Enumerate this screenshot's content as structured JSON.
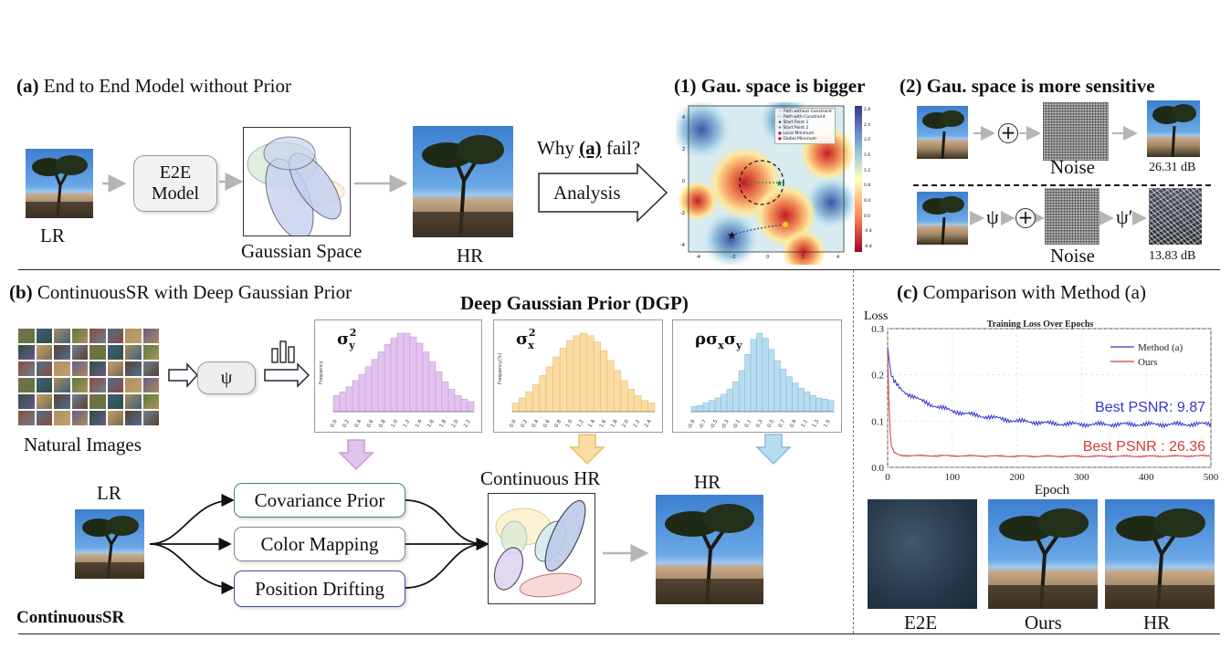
{
  "section_a": {
    "prefix": "(a)",
    "title": "End to End Model without Prior",
    "lr_label": "LR",
    "model_label_1": "E2E",
    "model_label_2": "Model",
    "gauss_label": "Gaussian Space",
    "hr_label": "HR",
    "why_prefix": "Why ",
    "why_mid": "(a)",
    "why_suffix": " fail?",
    "analysis_label": "Analysis"
  },
  "panel_1": {
    "title": "(1) Gau. space is bigger",
    "legend": [
      "Path without Constraint",
      "Path with Constraint",
      "Start Point 1",
      "Start Point 2",
      "Local Minimum",
      "Global Minimum"
    ],
    "x_ticks": [
      "-4",
      "-2",
      "0",
      "2",
      "4"
    ],
    "y_ticks": [
      "4",
      "2",
      "0",
      "-2",
      "-4"
    ],
    "colorbar_ticks": [
      "2.8",
      "2.4",
      "2.0",
      "1.6",
      "1.2",
      "0.8",
      "0.4",
      "0.0",
      "-0.4",
      "-0.8"
    ]
  },
  "panel_2": {
    "title": "(2) Gau. space is more sensitive",
    "plus": "+",
    "noise_label_1": "Noise",
    "score_1": "26.31 dB",
    "psi": "ψ",
    "psi_prime": "ψ′",
    "noise_label_2": "Noise",
    "score_2": "13.83 dB"
  },
  "section_b": {
    "prefix": "(b)",
    "title": "ContinuousSR with Deep Gaussian Prior",
    "natural_images": "Natural Images",
    "psi": "ψ",
    "dgp_title": "Deep Gaussian Prior (DGP)",
    "lr_label": "LR",
    "modules": [
      "Covariance Prior",
      "Color Mapping",
      "Position Drifting"
    ],
    "continuous_hr": "Continuous HR",
    "hr_label": "HR",
    "method_name": "ContinuousSR"
  },
  "histograms": [
    {
      "symbol": "σ",
      "sub": "y",
      "sup": "2",
      "ylabel": "Frequency",
      "color": "#e2c2ee",
      "edge": "#c79bd8",
      "x_ticks": [
        "0.0",
        "0.2",
        "0.4",
        "0.6",
        "0.8",
        "1.0",
        "1.2",
        "1.4",
        "1.6",
        "1.8",
        "2.0",
        "2.2"
      ],
      "values": [
        1.3,
        1.6,
        2.0,
        2.5,
        3.0,
        3.6,
        4.2,
        4.8,
        5.4,
        5.9,
        6.3,
        6.3,
        6.0,
        5.5,
        4.8,
        4.0,
        3.2,
        2.4,
        1.8,
        1.3,
        1.0,
        0.8
      ]
    },
    {
      "symbol": "σ",
      "sub": "x",
      "sup": "2",
      "ylabel": "Frequency(%)",
      "color": "#fadca4",
      "edge": "#e8bf6e",
      "x_ticks": [
        "0.0",
        "0.2",
        "0.4",
        "0.6",
        "0.8",
        "1.0",
        "1.2",
        "1.4",
        "1.6",
        "1.8",
        "2.0",
        "2.2",
        "2.4"
      ],
      "values": [
        0.7,
        1.1,
        1.6,
        2.2,
        2.9,
        3.6,
        4.4,
        5.1,
        5.7,
        6.1,
        6.3,
        6.1,
        5.6,
        4.9,
        4.1,
        3.3,
        2.5,
        1.8,
        1.3,
        0.9,
        0.7
      ]
    },
    {
      "symbol": "ρσ",
      "sub": "x",
      "sup": "",
      "tail": "σ",
      "tail_sub": "y",
      "ylabel": "",
      "color": "#b8dcef",
      "edge": "#86bcd9",
      "x_ticks": [
        "-0.9",
        "-0.7",
        "-0.5",
        "-0.3",
        "-0.1",
        "0.1",
        "0.3",
        "0.5",
        "0.7",
        "0.9",
        "1.1",
        "1.3",
        "1.5"
      ],
      "values": [
        0.4,
        0.5,
        0.7,
        0.9,
        1.1,
        1.4,
        1.8,
        2.4,
        3.3,
        4.6,
        5.8,
        6.3,
        5.9,
        5.0,
        4.1,
        3.4,
        2.8,
        2.3,
        1.9,
        1.6,
        1.3,
        1.1,
        1.0,
        0.9
      ]
    }
  ],
  "section_c": {
    "prefix": "(c)",
    "title": "Comparison with Method (a)",
    "caption_e2e": "E2E",
    "caption_ours": "Ours",
    "caption_hr": "HR"
  },
  "chart_data": {
    "type": "line",
    "title": "Training Loss Over Epochs",
    "xlabel": "Epoch",
    "ylabel": "Loss",
    "xlim": [
      0,
      500
    ],
    "ylim": [
      0,
      0.3
    ],
    "x_ticks": [
      "0",
      "100",
      "200",
      "300",
      "400",
      "500"
    ],
    "y_ticks": [
      "0.0",
      "0.1",
      "0.2",
      "0.3"
    ],
    "legend_position": "top-right",
    "series": [
      {
        "name": "Method (a)",
        "color": "#3333cc",
        "x": [
          0,
          5,
          10,
          20,
          30,
          50,
          75,
          100,
          125,
          150,
          175,
          200,
          225,
          250,
          275,
          300,
          350,
          400,
          450,
          500
        ],
        "y": [
          0.26,
          0.2,
          0.185,
          0.17,
          0.16,
          0.145,
          0.132,
          0.122,
          0.115,
          0.11,
          0.105,
          0.1,
          0.098,
          0.095,
          0.094,
          0.093,
          0.093,
          0.093,
          0.093,
          0.094
        ]
      },
      {
        "name": "Ours",
        "color": "#d43c3c",
        "x": [
          0,
          3,
          6,
          10,
          15,
          20,
          50,
          100,
          200,
          300,
          400,
          500
        ],
        "y": [
          0.25,
          0.09,
          0.045,
          0.032,
          0.028,
          0.026,
          0.025,
          0.025,
          0.024,
          0.024,
          0.024,
          0.025
        ]
      }
    ],
    "annotations": [
      "Best PSNR: 9.87",
      "Best PSNR : 26.36"
    ]
  }
}
